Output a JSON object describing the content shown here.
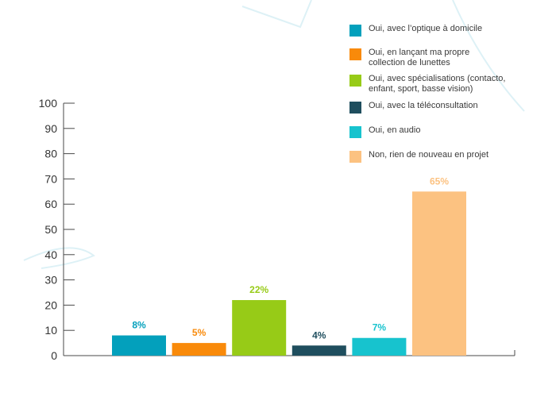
{
  "chart_data": {
    "type": "bar",
    "categories": [
      "Oui, avec l’optique à domicile",
      "Oui, en lançant ma propre\ncollection de lunettes",
      "Oui, avec spécialisations (contacto,\nenfant, sport, basse vision)",
      "Oui, avec la téléconsultation",
      "Oui, en audio",
      "Non, rien de nouveau en projet"
    ],
    "values": [
      8,
      5,
      22,
      4,
      7,
      65
    ],
    "data_labels": [
      "8%",
      "5%",
      "22%",
      "4%",
      "7%",
      "65%"
    ],
    "colors": [
      "#03A0BC",
      "#F98A0A",
      "#97CB17",
      "#1F4E5E",
      "#17C3CE",
      "#FCC281"
    ],
    "ylim": [
      0,
      100
    ],
    "yticks": [
      "0",
      "10",
      "20",
      "30",
      "40",
      "50",
      "60",
      "70",
      "80",
      "90",
      "100"
    ],
    "legend_position": "top-right",
    "grid": false
  }
}
